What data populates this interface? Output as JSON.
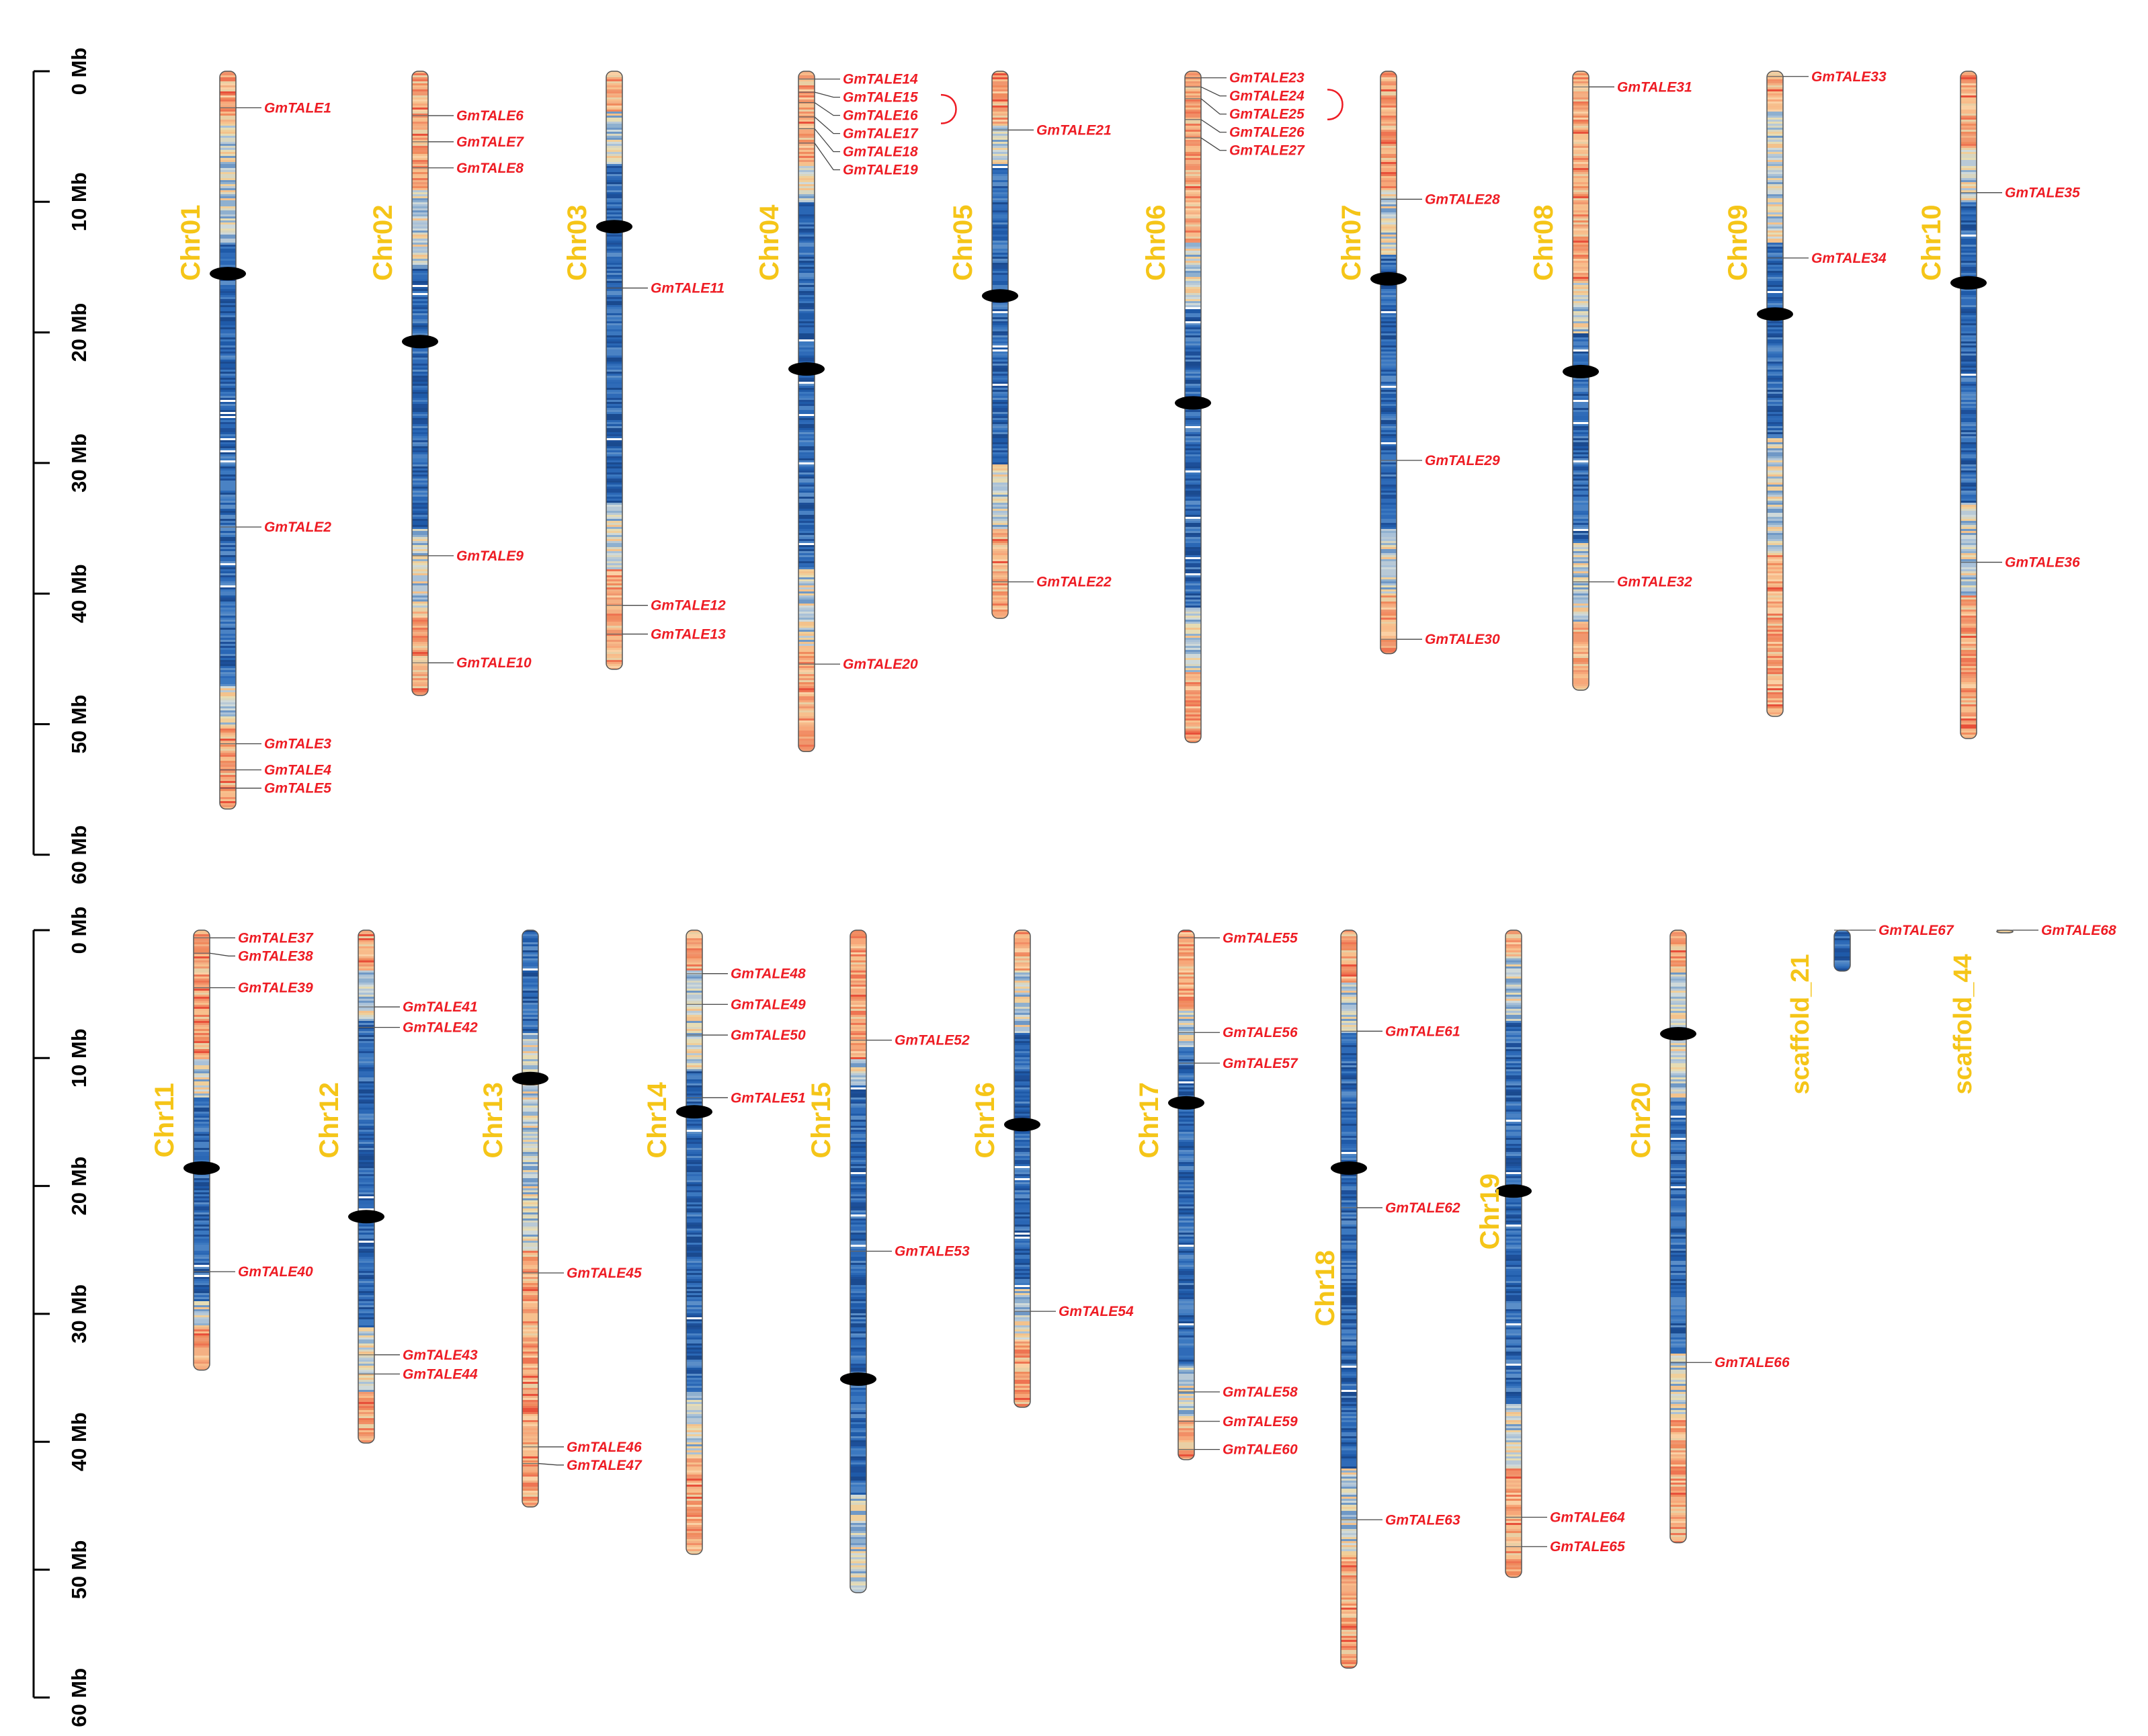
{
  "colors": {
    "gene": "#ee1c24",
    "chrom_label": "#F5C518",
    "centromere": "#000000"
  },
  "scales": [
    {
      "ticks": [
        "0 Mb",
        "10 Mb",
        "20 Mb",
        "30 Mb",
        "40 Mb",
        "50 Mb",
        "60 Mb"
      ]
    },
    {
      "ticks": [
        "0 Mb",
        "10 Mb",
        "20 Mb",
        "30 Mb",
        "40 Mb",
        "50 Mb",
        "60 Mb"
      ]
    }
  ],
  "chromosomes": [
    {
      "name": "Chr01",
      "row": 0,
      "length_mb": 56.5,
      "centromere_mb": 15.5,
      "seed": 11,
      "profile": [
        [
          0,
          "warm"
        ],
        [
          4,
          "mix"
        ],
        [
          13,
          "blue"
        ],
        [
          47,
          "mix"
        ],
        [
          50,
          "warm"
        ]
      ],
      "genes": [
        {
          "name": "GmTALE1",
          "mb": 2.8
        },
        {
          "name": "GmTALE2",
          "mb": 34.9
        },
        {
          "name": "GmTALE3",
          "mb": 51.5
        },
        {
          "name": "GmTALE4",
          "mb": 53.5
        },
        {
          "name": "GmTALE5",
          "mb": 54.9
        }
      ]
    },
    {
      "name": "Chr02",
      "row": 0,
      "length_mb": 47.8,
      "centromere_mb": 20.7,
      "seed": 12,
      "profile": [
        [
          0,
          "warm"
        ],
        [
          9,
          "mix"
        ],
        [
          15,
          "blue"
        ],
        [
          35,
          "mix"
        ],
        [
          41,
          "warm"
        ]
      ],
      "genes": [
        {
          "name": "GmTALE6",
          "mb": 3.4
        },
        {
          "name": "GmTALE7",
          "mb": 5.4
        },
        {
          "name": "GmTALE8",
          "mb": 7.4
        },
        {
          "name": "GmTALE9",
          "mb": 37.1
        },
        {
          "name": "GmTALE10",
          "mb": 45.3
        }
      ]
    },
    {
      "name": "Chr03",
      "row": 0,
      "length_mb": 45.8,
      "centromere_mb": 11.9,
      "seed": 13,
      "profile": [
        [
          0,
          "warm"
        ],
        [
          3,
          "mix"
        ],
        [
          7,
          "blue"
        ],
        [
          33,
          "mix"
        ],
        [
          38,
          "warm"
        ]
      ],
      "genes": [
        {
          "name": "GmTALE11",
          "mb": 16.6
        },
        {
          "name": "GmTALE12",
          "mb": 40.9
        },
        {
          "name": "GmTALE13",
          "mb": 43.1
        }
      ]
    },
    {
      "name": "Chr04",
      "row": 0,
      "length_mb": 52.1,
      "centromere_mb": 22.8,
      "seed": 14,
      "profile": [
        [
          0,
          "warm"
        ],
        [
          7,
          "mix"
        ],
        [
          10,
          "blue"
        ],
        [
          38,
          "mix"
        ],
        [
          44,
          "warm"
        ]
      ],
      "genes": [
        {
          "name": "GmTALE14",
          "mb": 0.6
        },
        {
          "name": "GmTALE15",
          "mb": 1.6
        },
        {
          "name": "GmTALE16",
          "mb": 2.4
        },
        {
          "name": "GmTALE17",
          "mb": 3.5
        },
        {
          "name": "GmTALE18",
          "mb": 4.4
        },
        {
          "name": "GmTALE19",
          "mb": 5.5
        },
        {
          "name": "GmTALE20",
          "mb": 45.4
        }
      ]
    },
    {
      "name": "Chr05",
      "row": 0,
      "length_mb": 41.9,
      "centromere_mb": 17.2,
      "seed": 15,
      "profile": [
        [
          0,
          "warm"
        ],
        [
          4,
          "mix"
        ],
        [
          7,
          "blue"
        ],
        [
          30,
          "mix"
        ],
        [
          35,
          "warm"
        ]
      ],
      "genes": [
        {
          "name": "GmTALE21",
          "mb": 4.5
        },
        {
          "name": "GmTALE22",
          "mb": 39.1
        }
      ]
    },
    {
      "name": "Chr06",
      "row": 0,
      "length_mb": 51.4,
      "centromere_mb": 25.4,
      "seed": 16,
      "profile": [
        [
          0,
          "warm"
        ],
        [
          13,
          "mix"
        ],
        [
          18,
          "blue"
        ],
        [
          41,
          "mix"
        ],
        [
          46,
          "warm"
        ]
      ],
      "genes": [
        {
          "name": "GmTALE23",
          "mb": 0.5
        },
        {
          "name": "GmTALE24",
          "mb": 1.2
        },
        {
          "name": "GmTALE25",
          "mb": 2.1
        },
        {
          "name": "GmTALE26",
          "mb": 3.7
        },
        {
          "name": "GmTALE27",
          "mb": 5.1
        }
      ]
    },
    {
      "name": "Chr07",
      "row": 0,
      "length_mb": 44.6,
      "centromere_mb": 15.9,
      "seed": 17,
      "profile": [
        [
          0,
          "warm"
        ],
        [
          9,
          "mix"
        ],
        [
          14,
          "blue"
        ],
        [
          35,
          "mix"
        ],
        [
          40,
          "warm"
        ]
      ],
      "genes": [
        {
          "name": "GmTALE28",
          "mb": 9.8
        },
        {
          "name": "GmTALE29",
          "mb": 29.8
        },
        {
          "name": "GmTALE30",
          "mb": 43.5
        }
      ]
    },
    {
      "name": "Chr08",
      "row": 0,
      "length_mb": 47.4,
      "centromere_mb": 23.0,
      "seed": 18,
      "profile": [
        [
          0,
          "warm"
        ],
        [
          16,
          "mix"
        ],
        [
          20,
          "blue"
        ],
        [
          36,
          "mix"
        ],
        [
          42,
          "warm"
        ]
      ],
      "genes": [
        {
          "name": "GmTALE31",
          "mb": 1.2
        },
        {
          "name": "GmTALE32",
          "mb": 39.1
        }
      ]
    },
    {
      "name": "Chr09",
      "row": 0,
      "length_mb": 49.4,
      "centromere_mb": 18.6,
      "seed": 19,
      "profile": [
        [
          0,
          "warm"
        ],
        [
          3,
          "mix"
        ],
        [
          13,
          "blue"
        ],
        [
          28,
          "mix"
        ],
        [
          37,
          "warm"
        ]
      ],
      "genes": [
        {
          "name": "GmTALE33",
          "mb": 0.4
        },
        {
          "name": "GmTALE34",
          "mb": 14.3
        }
      ]
    },
    {
      "name": "Chr10",
      "row": 0,
      "length_mb": 51.1,
      "centromere_mb": 16.2,
      "seed": 20,
      "profile": [
        [
          0,
          "warm"
        ],
        [
          6,
          "mix"
        ],
        [
          10,
          "blue"
        ],
        [
          33,
          "mix"
        ],
        [
          40,
          "warm"
        ]
      ],
      "genes": [
        {
          "name": "GmTALE35",
          "mb": 9.3
        },
        {
          "name": "GmTALE36",
          "mb": 37.6
        }
      ]
    },
    {
      "name": "Chr11",
      "row": 1,
      "length_mb": 34.4,
      "centromere_mb": 18.6,
      "seed": 21,
      "profile": [
        [
          0,
          "warm"
        ],
        [
          10,
          "mix"
        ],
        [
          13,
          "blue"
        ],
        [
          29,
          "mix"
        ],
        [
          31,
          "warm"
        ]
      ],
      "genes": [
        {
          "name": "GmTALE37",
          "mb": 0.6
        },
        {
          "name": "GmTALE38",
          "mb": 1.8
        },
        {
          "name": "GmTALE39",
          "mb": 4.5
        },
        {
          "name": "GmTALE40",
          "mb": 26.7
        }
      ]
    },
    {
      "name": "Chr12",
      "row": 1,
      "length_mb": 40.1,
      "centromere_mb": 22.4,
      "seed": 22,
      "profile": [
        [
          0,
          "warm"
        ],
        [
          3,
          "mix"
        ],
        [
          7,
          "blue"
        ],
        [
          31,
          "mix"
        ],
        [
          36,
          "warm"
        ]
      ],
      "genes": [
        {
          "name": "GmTALE41",
          "mb": 6.0
        },
        {
          "name": "GmTALE42",
          "mb": 7.6
        },
        {
          "name": "GmTALE43",
          "mb": 33.2
        },
        {
          "name": "GmTALE44",
          "mb": 34.7
        }
      ]
    },
    {
      "name": "Chr13",
      "row": 1,
      "length_mb": 45.1,
      "centromere_mb": 11.6,
      "seed": 23,
      "profile": [
        [
          0,
          "blue"
        ],
        [
          8,
          "mix"
        ],
        [
          16,
          "mix"
        ],
        [
          25,
          "warm"
        ]
      ],
      "genes": [
        {
          "name": "GmTALE45",
          "mb": 26.8
        },
        {
          "name": "GmTALE46",
          "mb": 40.4
        },
        {
          "name": "GmTALE47",
          "mb": 41.7
        }
      ]
    },
    {
      "name": "Chr14",
      "row": 1,
      "length_mb": 48.8,
      "centromere_mb": 14.2,
      "seed": 24,
      "profile": [
        [
          0,
          "warm"
        ],
        [
          3,
          "mix"
        ],
        [
          11,
          "blue"
        ],
        [
          36,
          "mix"
        ],
        [
          41,
          "warm"
        ]
      ],
      "genes": [
        {
          "name": "GmTALE48",
          "mb": 3.4
        },
        {
          "name": "GmTALE49",
          "mb": 5.8
        },
        {
          "name": "GmTALE50",
          "mb": 8.2
        },
        {
          "name": "GmTALE51",
          "mb": 13.1
        }
      ]
    },
    {
      "name": "Chr15",
      "row": 1,
      "length_mb": 51.8,
      "centromere_mb": 35.1,
      "seed": 25,
      "profile": [
        [
          0,
          "warm"
        ],
        [
          10,
          "mix"
        ],
        [
          12,
          "blue"
        ],
        [
          44,
          "mix"
        ]
      ],
      "genes": [
        {
          "name": "GmTALE52",
          "mb": 8.6
        },
        {
          "name": "GmTALE53",
          "mb": 25.1
        }
      ]
    },
    {
      "name": "Chr16",
      "row": 1,
      "length_mb": 37.3,
      "centromere_mb": 15.2,
      "seed": 26,
      "profile": [
        [
          0,
          "warm"
        ],
        [
          3,
          "mix"
        ],
        [
          8,
          "blue"
        ],
        [
          28,
          "mix"
        ],
        [
          32,
          "warm"
        ]
      ],
      "genes": [
        {
          "name": "GmTALE54",
          "mb": 29.8
        }
      ]
    },
    {
      "name": "Chr17",
      "row": 1,
      "length_mb": 41.4,
      "centromere_mb": 13.5,
      "seed": 27,
      "profile": [
        [
          0,
          "warm"
        ],
        [
          6,
          "mix"
        ],
        [
          9,
          "blue"
        ],
        [
          34,
          "mix"
        ],
        [
          38,
          "warm"
        ]
      ],
      "genes": [
        {
          "name": "GmTALE55",
          "mb": 0.6
        },
        {
          "name": "GmTALE56",
          "mb": 8.0
        },
        {
          "name": "GmTALE57",
          "mb": 10.4
        },
        {
          "name": "GmTALE58",
          "mb": 36.1
        },
        {
          "name": "GmTALE59",
          "mb": 38.4
        },
        {
          "name": "GmTALE60",
          "mb": 40.6
        }
      ]
    },
    {
      "name": "Chr18",
      "row": 1,
      "length_mb": 57.7,
      "centromere_mb": 18.6,
      "seed": 28,
      "profile": [
        [
          0,
          "warm"
        ],
        [
          4,
          "mix"
        ],
        [
          8,
          "blue"
        ],
        [
          42,
          "mix"
        ],
        [
          49,
          "warm"
        ]
      ],
      "genes": [
        {
          "name": "GmTALE61",
          "mb": 7.9
        },
        {
          "name": "GmTALE62",
          "mb": 21.7
        },
        {
          "name": "GmTALE63",
          "mb": 46.1
        }
      ]
    },
    {
      "name": "Chr19",
      "row": 1,
      "length_mb": 50.6,
      "centromere_mb": 20.4,
      "seed": 29,
      "profile": [
        [
          0,
          "warm"
        ],
        [
          2,
          "mix"
        ],
        [
          7,
          "blue"
        ],
        [
          37,
          "mix"
        ],
        [
          42,
          "warm"
        ]
      ],
      "genes": [
        {
          "name": "GmTALE64",
          "mb": 45.9
        },
        {
          "name": "GmTALE65",
          "mb": 48.2
        }
      ]
    },
    {
      "name": "Chr20",
      "row": 1,
      "length_mb": 47.9,
      "centromere_mb": 8.1,
      "seed": 30,
      "profile": [
        [
          0,
          "warm"
        ],
        [
          3,
          "mix"
        ],
        [
          13,
          "blue"
        ],
        [
          33,
          "mix"
        ],
        [
          38,
          "warm"
        ]
      ],
      "genes": [
        {
          "name": "GmTALE66",
          "mb": 33.8
        }
      ]
    },
    {
      "name": "scaffold_21",
      "row": 1,
      "length_mb": 3.2,
      "centromere_mb": null,
      "seed": 31,
      "profile": [
        [
          0,
          "blue"
        ]
      ],
      "genes": [
        {
          "name": "GmTALE67",
          "mb": 0.0
        }
      ]
    },
    {
      "name": "scaffold_44",
      "row": 1,
      "length_mb": 0.1,
      "centromere_mb": null,
      "seed": 32,
      "profile": [
        [
          0,
          "mix"
        ]
      ],
      "genes": [
        {
          "name": "GmTALE68",
          "mb": 0.0
        }
      ]
    }
  ]
}
